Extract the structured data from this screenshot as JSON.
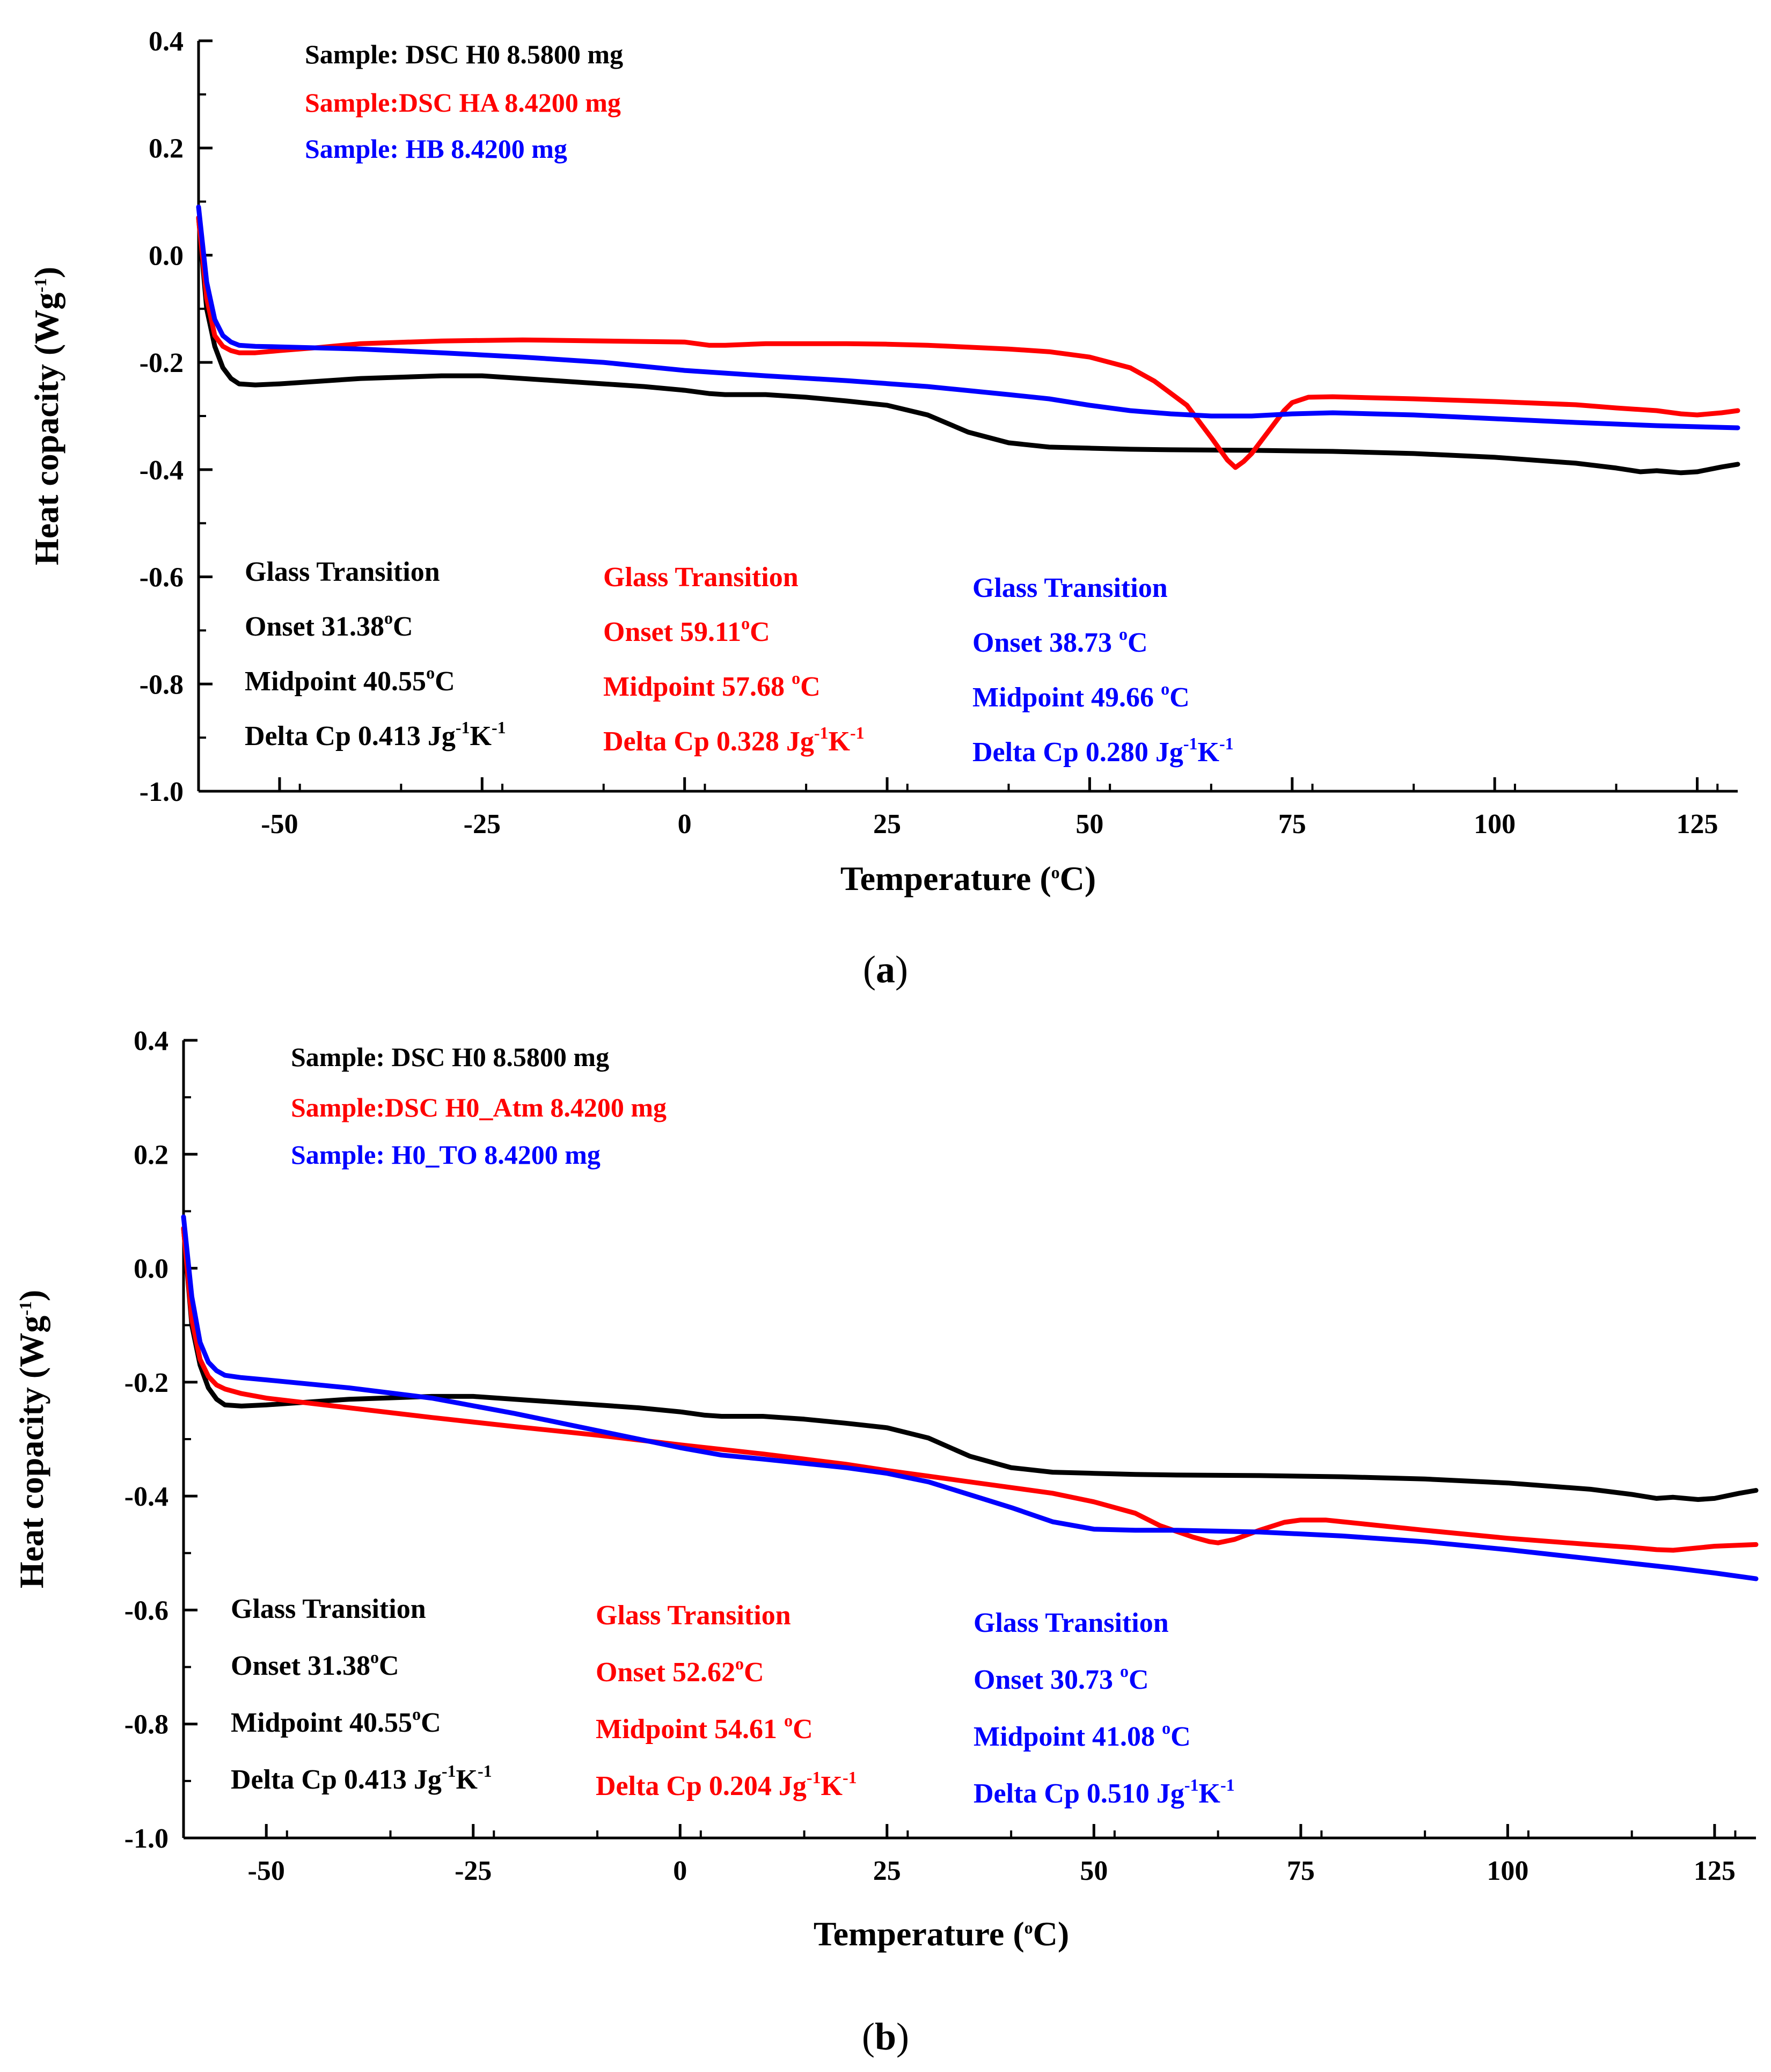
{
  "chart_data": [
    {
      "panel": "a",
      "panel_label": "a",
      "type": "line",
      "xlabel": "Temperature (°C)",
      "ylabel": "Heat copacity (Wg-1)",
      "xlim": [
        -60,
        130
      ],
      "ylim": [
        -1.0,
        0.4
      ],
      "xticks": [
        -50,
        -25,
        0,
        25,
        50,
        75,
        100,
        125
      ],
      "yticks": [
        -1.0,
        -0.8,
        -0.6,
        -0.4,
        -0.2,
        0.0,
        0.2,
        0.4
      ],
      "series": [
        {
          "name": "Sample: DSC H0 8.5800 mg",
          "color": "#000000",
          "x": [
            -60,
            -59,
            -58,
            -57,
            -56,
            -55,
            -53,
            -50,
            -45,
            -40,
            -30,
            -25,
            -20,
            -10,
            -5,
            0,
            3,
            5,
            10,
            15,
            20,
            25,
            30,
            35,
            40,
            45,
            50,
            55,
            60,
            70,
            80,
            90,
            100,
            110,
            115,
            118,
            120,
            123,
            125,
            128,
            130
          ],
          "y": [
            0.07,
            -0.1,
            -0.17,
            -0.21,
            -0.23,
            -0.24,
            -0.242,
            -0.24,
            -0.235,
            -0.23,
            -0.225,
            -0.225,
            -0.23,
            -0.24,
            -0.245,
            -0.252,
            -0.258,
            -0.26,
            -0.26,
            -0.265,
            -0.272,
            -0.28,
            -0.298,
            -0.33,
            -0.35,
            -0.358,
            -0.36,
            -0.362,
            -0.363,
            -0.364,
            -0.366,
            -0.37,
            -0.377,
            -0.388,
            -0.397,
            -0.404,
            -0.402,
            -0.406,
            -0.404,
            -0.395,
            -0.39
          ]
        },
        {
          "name": "Sample:DSC HA 8.4200 mg",
          "color": "#ff0000",
          "x": [
            -60,
            -59,
            -58,
            -57,
            -56,
            -55,
            -53,
            -50,
            -45,
            -40,
            -30,
            -20,
            -10,
            0,
            3,
            5,
            10,
            20,
            25,
            30,
            40,
            45,
            50,
            55,
            58,
            62,
            65,
            67,
            68,
            69,
            70,
            72,
            74,
            75,
            77,
            80,
            90,
            100,
            110,
            115,
            120,
            123,
            125,
            128,
            130
          ],
          "y": [
            0.07,
            -0.08,
            -0.15,
            -0.17,
            -0.178,
            -0.182,
            -0.182,
            -0.178,
            -0.172,
            -0.165,
            -0.16,
            -0.158,
            -0.16,
            -0.162,
            -0.168,
            -0.168,
            -0.165,
            -0.165,
            -0.166,
            -0.168,
            -0.175,
            -0.18,
            -0.19,
            -0.21,
            -0.235,
            -0.28,
            -0.34,
            -0.382,
            -0.396,
            -0.385,
            -0.37,
            -0.33,
            -0.29,
            -0.275,
            -0.265,
            -0.264,
            -0.268,
            -0.273,
            -0.279,
            -0.285,
            -0.29,
            -0.296,
            -0.298,
            -0.294,
            -0.29
          ]
        },
        {
          "name": "Sample: HB 8.4200 mg",
          "color": "#0000ff",
          "x": [
            -60,
            -59,
            -58,
            -57,
            -56,
            -55,
            -53,
            -50,
            -40,
            -30,
            -20,
            -10,
            0,
            5,
            10,
            20,
            30,
            40,
            45,
            50,
            55,
            60,
            65,
            70,
            75,
            80,
            90,
            100,
            110,
            120,
            125,
            130
          ],
          "y": [
            0.09,
            -0.05,
            -0.12,
            -0.15,
            -0.162,
            -0.168,
            -0.17,
            -0.171,
            -0.175,
            -0.182,
            -0.19,
            -0.2,
            -0.215,
            -0.22,
            -0.225,
            -0.234,
            -0.245,
            -0.26,
            -0.268,
            -0.28,
            -0.29,
            -0.296,
            -0.3,
            -0.3,
            -0.296,
            -0.294,
            -0.298,
            -0.305,
            -0.312,
            -0.318,
            -0.32,
            -0.322
          ]
        }
      ],
      "annotations": [
        {
          "color": "#000000",
          "lines": [
            "Glass Transition",
            "Onset 31.38°C",
            "Midpoint 40.55°C",
            "Delta Cp 0.413 Jg-1K-1"
          ]
        },
        {
          "color": "#ff0000",
          "lines": [
            "Glass Transition",
            "Onset 59.11°C",
            "Midpoint 57.68 °C",
            "Delta Cp 0.328 Jg-1K-1"
          ]
        },
        {
          "color": "#0000ff",
          "lines": [
            "Glass Transition",
            "Onset 38.73 °C",
            "Midpoint 49.66 °C",
            "Delta Cp 0.280 Jg-1K-1"
          ]
        }
      ]
    },
    {
      "panel": "b",
      "panel_label": "b",
      "type": "line",
      "xlabel": "Temperature (°C)",
      "ylabel": "Heat copacity (Wg-1)",
      "xlim": [
        -60,
        130
      ],
      "ylim": [
        -1.0,
        0.4
      ],
      "xticks": [
        -50,
        -25,
        0,
        25,
        50,
        75,
        100,
        125
      ],
      "yticks": [
        -1.0,
        -0.8,
        -0.6,
        -0.4,
        -0.2,
        0.0,
        0.2,
        0.4
      ],
      "series": [
        {
          "name": "Sample: DSC H0 8.5800 mg",
          "color": "#000000",
          "x": [
            -60,
            -59,
            -58,
            -57,
            -56,
            -55,
            -53,
            -50,
            -45,
            -40,
            -30,
            -25,
            -20,
            -10,
            -5,
            0,
            3,
            5,
            10,
            15,
            20,
            25,
            30,
            35,
            40,
            45,
            50,
            55,
            60,
            70,
            80,
            90,
            100,
            110,
            115,
            118,
            120,
            123,
            125,
            128,
            130
          ],
          "y": [
            0.07,
            -0.1,
            -0.17,
            -0.21,
            -0.23,
            -0.24,
            -0.242,
            -0.24,
            -0.235,
            -0.23,
            -0.225,
            -0.225,
            -0.23,
            -0.24,
            -0.245,
            -0.252,
            -0.258,
            -0.26,
            -0.26,
            -0.265,
            -0.272,
            -0.28,
            -0.298,
            -0.33,
            -0.35,
            -0.358,
            -0.36,
            -0.362,
            -0.363,
            -0.364,
            -0.366,
            -0.37,
            -0.377,
            -0.388,
            -0.397,
            -0.404,
            -0.402,
            -0.406,
            -0.404,
            -0.395,
            -0.39
          ]
        },
        {
          "name": "Sample:DSC H0_Atm 8.4200 mg",
          "color": "#ff0000",
          "x": [
            -60,
            -59,
            -58,
            -57,
            -56,
            -55,
            -53,
            -50,
            -40,
            -30,
            -20,
            -10,
            0,
            10,
            20,
            25,
            30,
            40,
            45,
            50,
            55,
            58,
            62,
            64,
            65,
            67,
            70,
            73,
            75,
            78,
            80,
            90,
            100,
            110,
            115,
            118,
            120,
            125,
            130
          ],
          "y": [
            0.07,
            -0.09,
            -0.16,
            -0.19,
            -0.205,
            -0.212,
            -0.22,
            -0.228,
            -0.245,
            -0.262,
            -0.278,
            -0.293,
            -0.31,
            -0.326,
            -0.344,
            -0.355,
            -0.365,
            -0.385,
            -0.395,
            -0.41,
            -0.43,
            -0.452,
            -0.472,
            -0.48,
            -0.482,
            -0.476,
            -0.46,
            -0.446,
            -0.442,
            -0.442,
            -0.445,
            -0.46,
            -0.474,
            -0.485,
            -0.49,
            -0.494,
            -0.495,
            -0.488,
            -0.485
          ]
        },
        {
          "name": "Sample: H0_TO 8.4200 mg",
          "color": "#0000ff",
          "x": [
            -60,
            -59,
            -58,
            -57,
            -56,
            -55,
            -53,
            -50,
            -40,
            -30,
            -20,
            -10,
            0,
            5,
            10,
            20,
            25,
            30,
            40,
            45,
            50,
            55,
            60,
            70,
            80,
            90,
            100,
            110,
            120,
            125,
            130
          ],
          "y": [
            0.09,
            -0.05,
            -0.13,
            -0.165,
            -0.18,
            -0.188,
            -0.192,
            -0.196,
            -0.21,
            -0.228,
            -0.255,
            -0.285,
            -0.315,
            -0.328,
            -0.335,
            -0.35,
            -0.36,
            -0.375,
            -0.42,
            -0.445,
            -0.458,
            -0.46,
            -0.46,
            -0.463,
            -0.47,
            -0.48,
            -0.494,
            -0.51,
            -0.526,
            -0.535,
            -0.545
          ]
        }
      ],
      "annotations": [
        {
          "color": "#000000",
          "lines": [
            "Glass Transition",
            "Onset 31.38°C",
            "Midpoint 40.55°C",
            "Delta Cp 0.413 Jg-1K-1"
          ]
        },
        {
          "color": "#ff0000",
          "lines": [
            "Glass Transition",
            "Onset 52.62°C",
            "Midpoint 54.61 °C",
            "Delta Cp 0.204 Jg-1K-1"
          ]
        },
        {
          "color": "#0000ff",
          "lines": [
            "Glass Transition",
            "Onset 30.73 °C",
            "Midpoint 41.08 °C",
            "Delta Cp 0.510 Jg-1K-1"
          ]
        }
      ]
    }
  ]
}
